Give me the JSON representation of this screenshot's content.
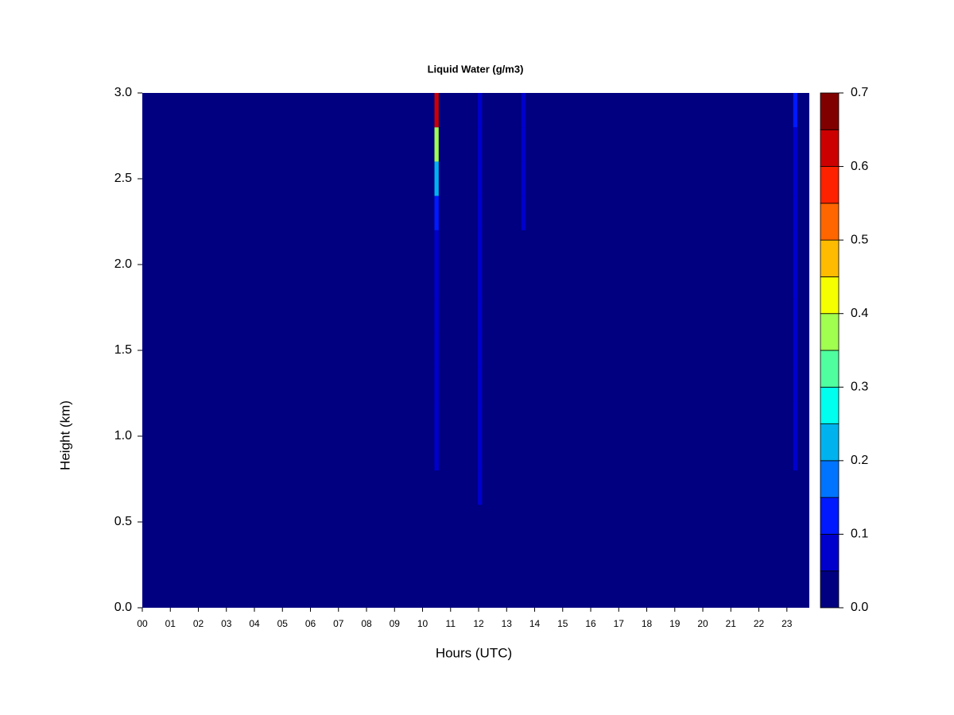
{
  "chart_data": {
    "type": "heatmap",
    "title": "Liquid Water (g/m3)",
    "x_label": "Hours (UTC)",
    "y_label": "Height (km)",
    "xlim": [
      0,
      23.8
    ],
    "xticks": [
      {
        "value": 0,
        "label": "00"
      },
      {
        "value": 1,
        "label": "01"
      },
      {
        "value": 2,
        "label": "02"
      },
      {
        "value": 3,
        "label": "03"
      },
      {
        "value": 4,
        "label": "04"
      },
      {
        "value": 5,
        "label": "05"
      },
      {
        "value": 6,
        "label": "06"
      },
      {
        "value": 7,
        "label": "07"
      },
      {
        "value": 8,
        "label": "08"
      },
      {
        "value": 9,
        "label": "09"
      },
      10,
      11,
      12,
      13,
      14,
      15,
      16,
      17,
      18,
      19,
      20,
      21,
      22,
      23
    ],
    "ylim": [
      0,
      3
    ],
    "yticks": [
      {
        "value": 0,
        "label": "0.0"
      },
      0.5,
      {
        "value": 1,
        "label": "1.0"
      },
      1.5,
      {
        "value": 2,
        "label": "2.0"
      },
      2.5,
      {
        "value": 3,
        "label": "3.0"
      }
    ],
    "x": [
      10.5,
      12.05,
      13.6,
      23.3
    ],
    "y": [
      0.1,
      0.3,
      0.5,
      0.7,
      0.9,
      1.1,
      1.3,
      1.5,
      1.7,
      1.9,
      2.1,
      2.3,
      2.5,
      2.7,
      2.9
    ],
    "z": [
      [
        0,
        0,
        0,
        0,
        0.05,
        0.06,
        0.06,
        0.06,
        0.06,
        0.06,
        0.08,
        0.12,
        0.2,
        0.35,
        0.6
      ],
      [
        0,
        0,
        0,
        0.06,
        0.06,
        0.07,
        0.07,
        0.07,
        0.07,
        0.07,
        0.07,
        0.08,
        0.08,
        0.08,
        0.09
      ],
      [
        0,
        0,
        0,
        0,
        0,
        0,
        0,
        0,
        0,
        0,
        0,
        0.06,
        0.06,
        0.07,
        0.07
      ],
      [
        0,
        0,
        0,
        0,
        0.06,
        0.06,
        0.06,
        0.06,
        0.06,
        0.07,
        0.07,
        0.08,
        0.08,
        0.09,
        0.12
      ]
    ],
    "levels": [
      0,
      0.05,
      0.1,
      0.15,
      0.2,
      0.25,
      0.3,
      0.35,
      0.4,
      0.45,
      0.5,
      0.55,
      0.6,
      0.65,
      0.7
    ],
    "colors": [
      "#000080",
      "#0000cc",
      "#0019ff",
      "#0073ff",
      "#00b3ee",
      "#00ffee",
      "#4fff9f",
      "#a0ff4f",
      "#f5ff00",
      "#ffbb00",
      "#ff6600",
      "#ff2200",
      "#cc0000",
      "#800000"
    ],
    "colorbar_ticks": [
      {
        "value": 0,
        "label": "0.0"
      },
      0.1,
      0.2,
      0.3,
      0.4,
      0.5,
      0.6,
      0.7
    ]
  }
}
